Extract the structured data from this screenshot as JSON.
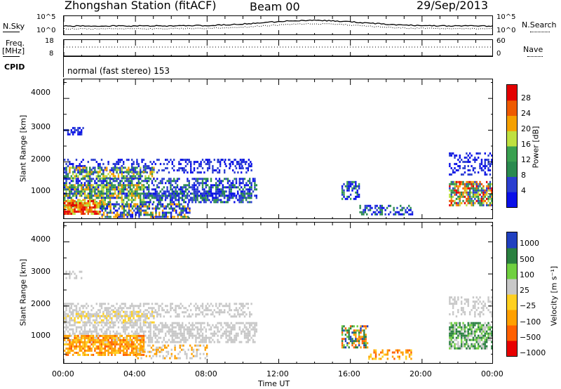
{
  "header": {
    "station": "Zhongshan Station (fitACF)",
    "beam": "Beam 00",
    "date": "29/Sep/2013"
  },
  "top_panels": {
    "nsky_label": "N.Sky",
    "nsky_ticks": [
      "10^5",
      "10^0"
    ],
    "nsearch_label": "N.Search",
    "nsearch_ticks": [
      "10^5",
      "10^0"
    ],
    "freq_label": "Freq.",
    "freq_unit": "[MHz]",
    "freq_ticks": [
      "18",
      "8"
    ],
    "nave_label": "Nave",
    "nave_ticks": [
      "60",
      "0"
    ],
    "cpid_label": "CPID",
    "cpid_text": "normal (fast stereo) 153"
  },
  "colors": {
    "power": [
      "#0a10e8",
      "#2b3fd0",
      "#2a8a4f",
      "#3aa050",
      "#bfe040",
      "#f5a000",
      "#ee5a00",
      "#e30000"
    ],
    "velocity": [
      "#e80000",
      "#ff6000",
      "#ffa000",
      "#ffd020",
      "#c8c8c8",
      "#70d040",
      "#2a8040",
      "#2040c0"
    ]
  },
  "chart_data": [
    {
      "type": "heatmap",
      "name": "power",
      "ylabel": "Slant Range [km]",
      "xlabel": "Time UT",
      "x_ticks": [
        "00:00",
        "04:00",
        "08:00",
        "12:00",
        "16:00",
        "20:00",
        "00:00"
      ],
      "y_ticks": [
        1000,
        2000,
        3000,
        4000
      ],
      "xlim_hours": [
        0,
        24
      ],
      "ylim_km": [
        180,
        4600
      ],
      "colorbar_label": "Power [dB]",
      "colorbar_ticks": [
        "4",
        "8",
        "12",
        "16",
        "20",
        "24",
        "28"
      ],
      "colorbar_range": [
        0,
        32
      ]
    },
    {
      "type": "heatmap",
      "name": "velocity",
      "ylabel": "Slant Range [km]",
      "xlabel": "Time UT",
      "x_ticks": [
        "00:00",
        "04:00",
        "08:00",
        "12:00",
        "16:00",
        "20:00",
        "00:00"
      ],
      "y_ticks": [
        1000,
        2000,
        3000,
        4000
      ],
      "xlim_hours": [
        0,
        24
      ],
      "ylim_km": [
        180,
        4600
      ],
      "colorbar_label": "Velocity [m s⁻¹]",
      "colorbar_ticks": [
        "1000",
        "500",
        "100",
        "25",
        "−25",
        "−100",
        "−500",
        "−1000"
      ]
    }
  ]
}
